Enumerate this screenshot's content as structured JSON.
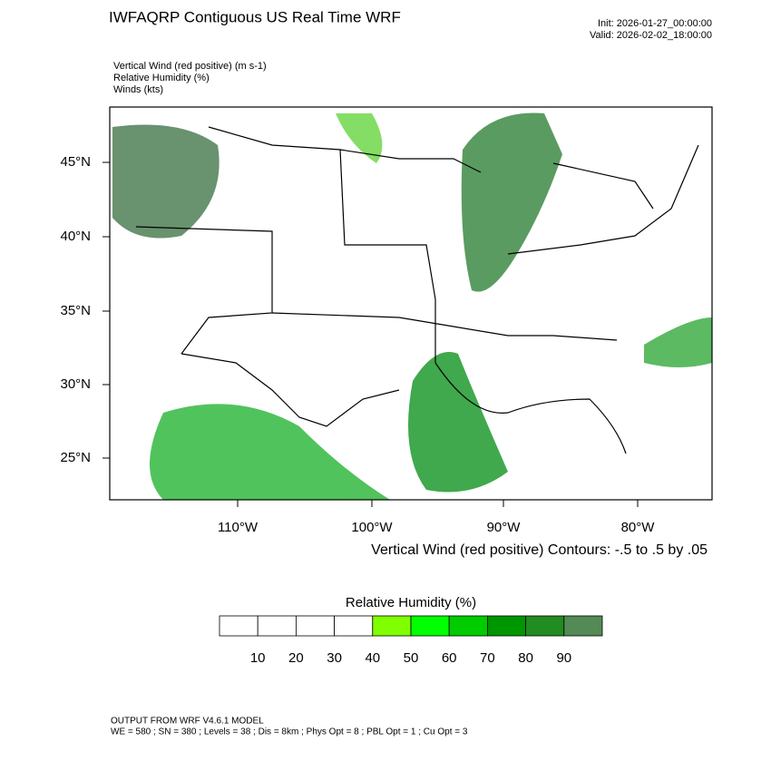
{
  "header": {
    "title": "IWFAQRP Contiguous US Real Time WRF",
    "init": "Init: 2026-01-27_00:00:00",
    "valid": "Valid: 2026-02-02_18:00:00"
  },
  "fields": [
    "Vertical Wind (red positive)   (m s-1)",
    "Relative Humidity   (%)",
    "Winds   (kts)"
  ],
  "map": {
    "lat_labels": [
      "45°N",
      "40°N",
      "35°N",
      "30°N",
      "25°N"
    ],
    "lon_labels": [
      "110°W",
      "100°W",
      "90°W",
      "80°W"
    ],
    "contour_note": "Vertical Wind (red positive) Contours: -.5 to .5 by .05"
  },
  "colorbar": {
    "title": "Relative Humidity  (%)",
    "colors": [
      "#ffffff",
      "#ffffff",
      "#ffffff",
      "#ffffff",
      "#80ff00",
      "#00ff00",
      "#00cc00",
      "#009600",
      "#228b22",
      "#538a55"
    ],
    "labels": [
      "10",
      "20",
      "30",
      "40",
      "50",
      "60",
      "70",
      "80",
      "90"
    ]
  },
  "footer": [
    "OUTPUT FROM WRF V4.6.1 MODEL",
    "WE = 580 ; SN = 380 ; Levels = 38 ; Dis = 8km ; Phys Opt = 8 ; PBL Opt = 1 ; Cu Opt = 3"
  ]
}
